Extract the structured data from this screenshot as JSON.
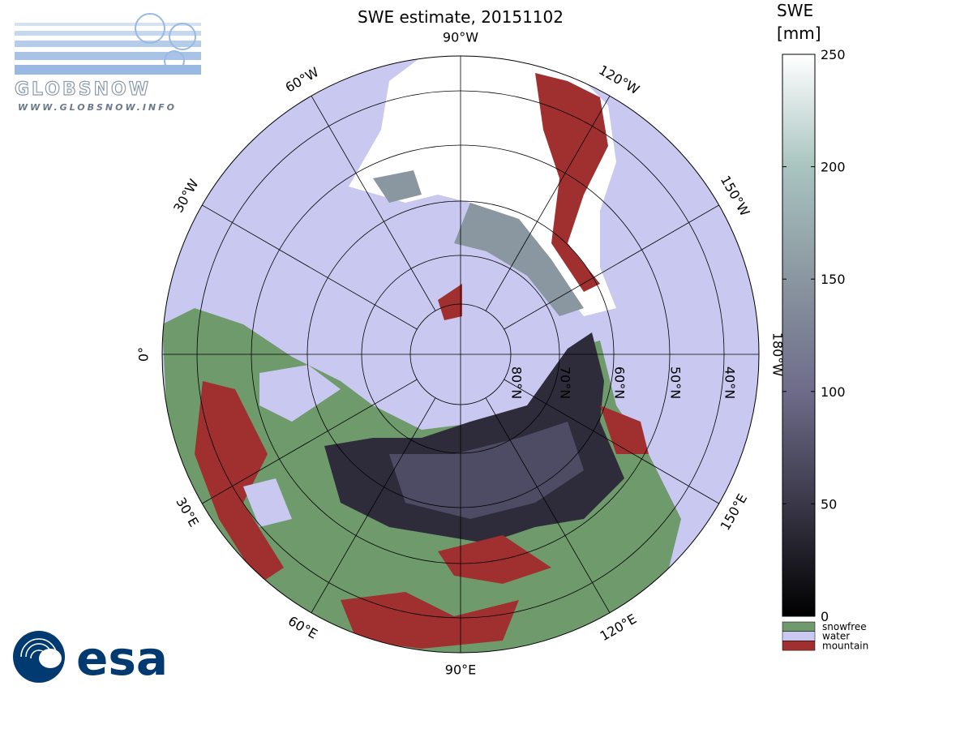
{
  "title": "SWE estimate, 20151102",
  "logos": {
    "globsnow": "GLOBSNOW",
    "url": "WWW.GLOBSNOW.INFO",
    "esa": "esa"
  },
  "map": {
    "longitude_labels": [
      "0°",
      "30°W",
      "60°W",
      "90°W",
      "120°W",
      "150°W",
      "180°W",
      "150°E",
      "120°E",
      "90°E",
      "60°E",
      "30°E"
    ],
    "latitude_labels": [
      "80°N",
      "70°N",
      "60°N",
      "50°N",
      "40°N"
    ]
  },
  "colorbar": {
    "label": [
      "SWE",
      "[mm]"
    ],
    "lim": [
      0,
      250
    ],
    "ticks": [
      0,
      50,
      100,
      150,
      200,
      250
    ],
    "colors": [
      "#000000",
      "#3a3848",
      "#6e6c8a",
      "#8a96a0",
      "#a9c4c0",
      "#ffffff"
    ]
  },
  "legend": [
    {
      "name": "snowfree",
      "color": "#6f9a6b"
    },
    {
      "name": "water",
      "color": "#c8c8f0"
    },
    {
      "name": "mountain",
      "color": "#a03030"
    }
  ]
}
